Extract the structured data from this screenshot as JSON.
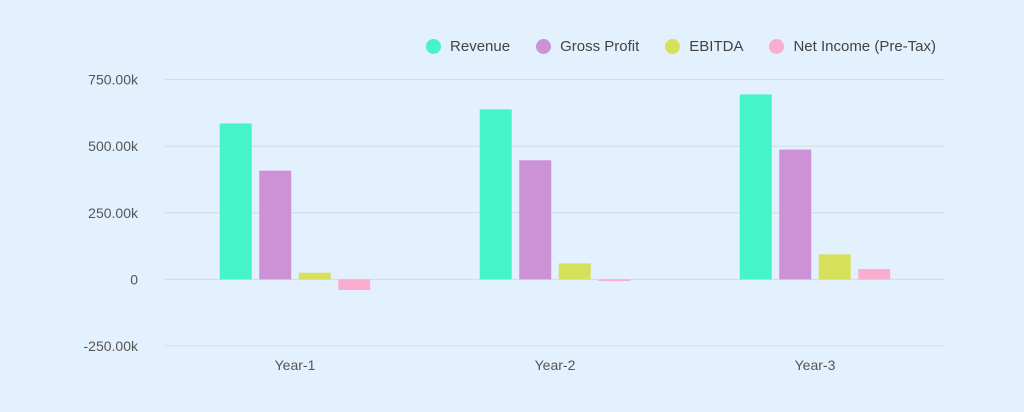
{
  "chart_data": {
    "type": "bar",
    "title": "",
    "xlabel": "",
    "ylabel": "",
    "categories": [
      "Year-1",
      "Year-2",
      "Year-3"
    ],
    "ylim": [
      -250000,
      750000
    ],
    "yticks": [
      -250000,
      0,
      250000,
      500000,
      750000
    ],
    "ytick_labels": [
      "-250.00k",
      "0",
      "250.00k",
      "500.00k",
      "750.00k"
    ],
    "grid": true,
    "legend_position": "top-right",
    "series": [
      {
        "name": "Revenue",
        "color": "#45f5c8",
        "values": [
          585000,
          638000,
          694000
        ]
      },
      {
        "name": "Gross Profit",
        "color": "#cd91d6",
        "values": [
          408000,
          447000,
          487000
        ]
      },
      {
        "name": "EBITDA",
        "color": "#d6e05a",
        "values": [
          25000,
          60000,
          94000
        ]
      },
      {
        "name": "Net Income (Pre-Tax)",
        "color": "#fbadcf",
        "values": [
          -40000,
          -6000,
          39000
        ]
      }
    ]
  }
}
